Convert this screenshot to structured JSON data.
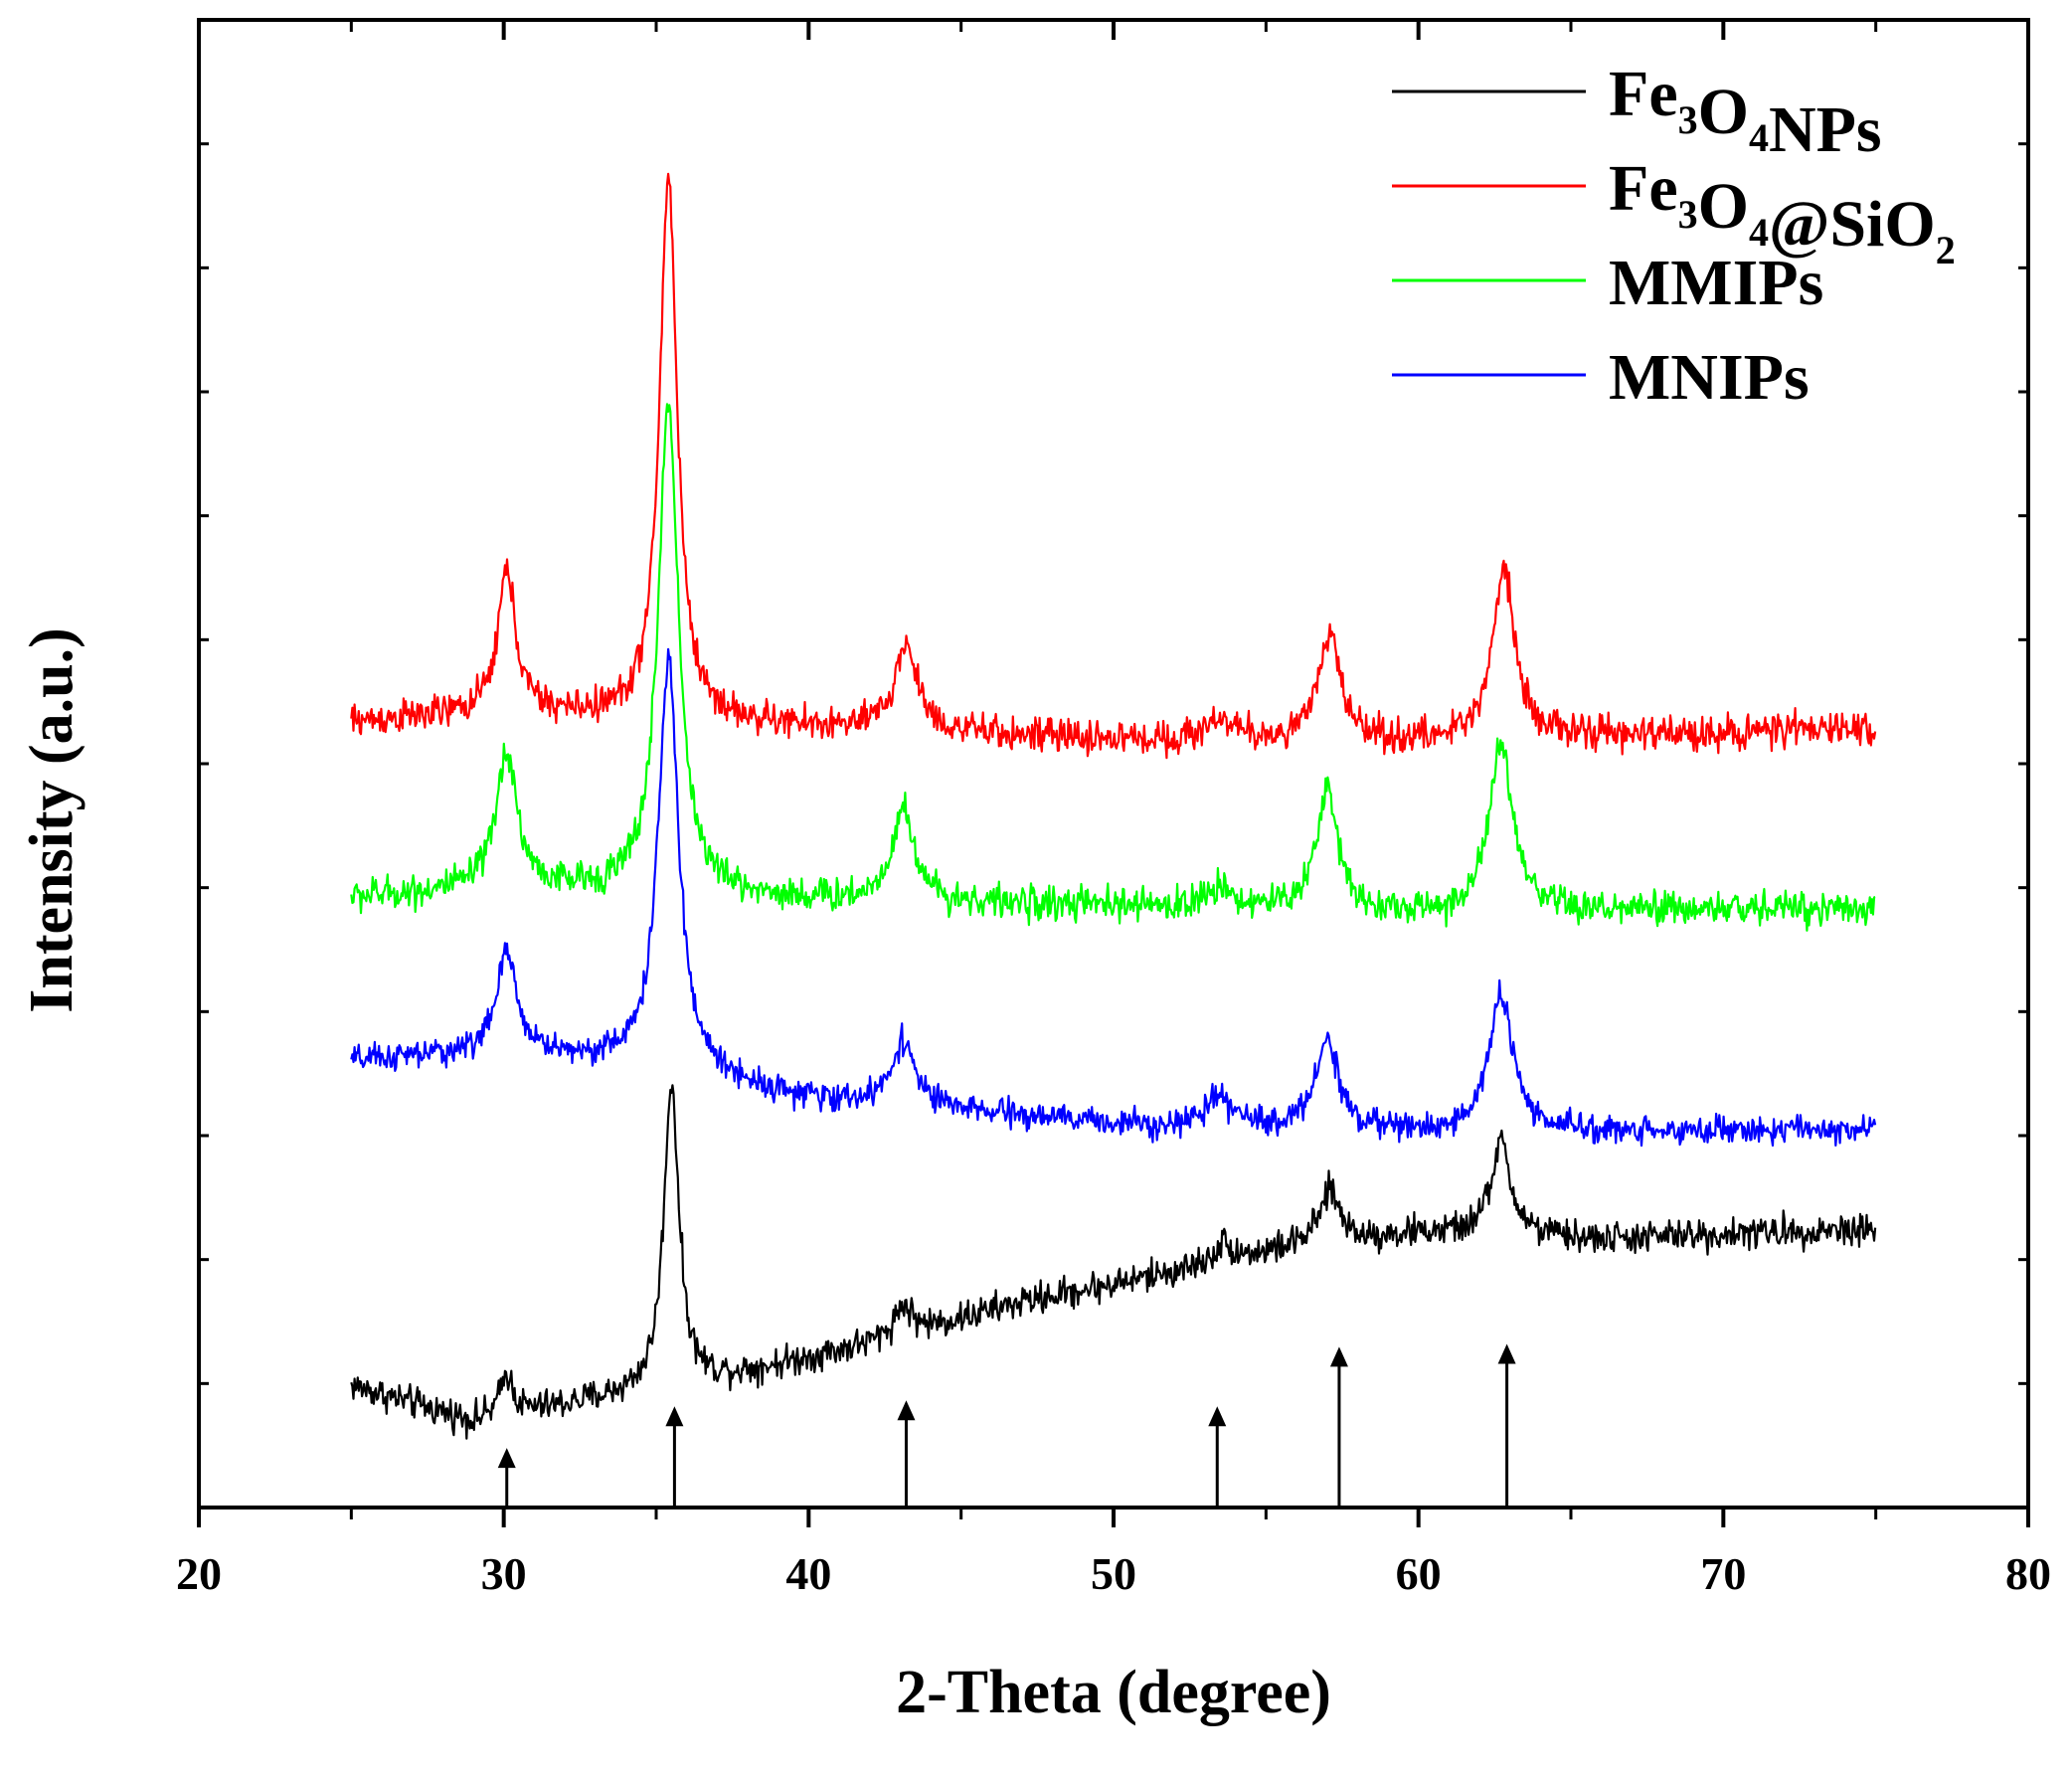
{
  "chart_data": {
    "type": "line",
    "title": "",
    "xlabel": "2-Theta (degree)",
    "ylabel": "Intensity (a.u.)",
    "xlim": [
      20,
      80
    ],
    "ylim": [
      0,
      100
    ],
    "x_ticks": [
      20,
      30,
      40,
      50,
      60,
      70,
      80
    ],
    "x_tick_labels": [
      "20",
      "30",
      "40",
      "50",
      "60",
      "70",
      "80"
    ],
    "y_tick_labels_shown": false,
    "legend_position": "top-right",
    "series": [
      {
        "name": "Fe3O4NPs",
        "legend_parts": [
          {
            "t": "Fe"
          },
          {
            "t": "3",
            "sub": true
          },
          {
            "t": "O"
          },
          {
            "t": "4",
            "sub": true
          },
          {
            "t": "NPs"
          }
        ],
        "color": "#000000",
        "x_range": [
          25,
          75
        ],
        "baseline_points": [
          [
            25,
            8.2
          ],
          [
            29,
            5.8
          ],
          [
            33,
            7.2
          ],
          [
            37,
            8.6
          ],
          [
            42,
            11.0
          ],
          [
            47,
            13.8
          ],
          [
            52,
            15.8
          ],
          [
            56,
            17.5
          ],
          [
            60,
            18.4
          ],
          [
            66,
            18.0
          ],
          [
            75,
            18.8
          ]
        ],
        "noise": 1.6,
        "peaks": [
          {
            "x": 30.1,
            "height": 2.8,
            "width": 0.25
          },
          {
            "x": 35.5,
            "height": 20.5,
            "width": 0.3
          },
          {
            "x": 43.1,
            "height": 2.0,
            "width": 0.35
          },
          {
            "x": 53.6,
            "height": 1.2,
            "width": 0.4
          },
          {
            "x": 57.1,
            "height": 3.5,
            "width": 0.4
          },
          {
            "x": 62.7,
            "height": 6.2,
            "width": 0.4
          }
        ]
      },
      {
        "name": "Fe3O4@SiO2",
        "legend_parts": [
          {
            "t": "Fe"
          },
          {
            "t": "3",
            "sub": true
          },
          {
            "t": "O"
          },
          {
            "t": "4",
            "sub": true
          },
          {
            "t": "@SiO"
          },
          {
            "t": "2",
            "sub": true
          }
        ],
        "color": "#ff0000",
        "x_range": [
          25,
          75
        ],
        "baseline_points": [
          [
            25,
            52.8
          ],
          [
            30,
            53.4
          ],
          [
            40,
            52.4
          ],
          [
            50,
            51.6
          ],
          [
            60,
            51.4
          ],
          [
            75,
            52.4
          ]
        ],
        "noise": 1.7,
        "peaks": [
          {
            "x": 30.1,
            "height": 9.5,
            "width": 0.35
          },
          {
            "x": 35.4,
            "height": 36.5,
            "width": 0.35
          },
          {
            "x": 43.2,
            "height": 5.8,
            "width": 0.45
          },
          {
            "x": 53.5,
            "height": 1.5,
            "width": 0.5
          },
          {
            "x": 57.1,
            "height": 7.0,
            "width": 0.45
          },
          {
            "x": 62.8,
            "height": 11.5,
            "width": 0.45
          }
        ]
      },
      {
        "name": "MMIPs",
        "legend_parts": [
          {
            "t": "MMIPs"
          }
        ],
        "color": "#00ff00",
        "x_range": [
          25,
          75
        ],
        "baseline_points": [
          [
            25,
            41.0
          ],
          [
            30,
            41.6
          ],
          [
            40,
            40.8
          ],
          [
            50,
            40.4
          ],
          [
            60,
            39.8
          ],
          [
            75,
            40.4
          ]
        ],
        "noise": 1.7,
        "peaks": [
          {
            "x": 30.1,
            "height": 9.2,
            "width": 0.4
          },
          {
            "x": 35.4,
            "height": 33.0,
            "width": 0.4
          },
          {
            "x": 43.1,
            "height": 6.2,
            "width": 0.45
          },
          {
            "x": 53.5,
            "height": 1.5,
            "width": 0.5
          },
          {
            "x": 57.0,
            "height": 8.0,
            "width": 0.45
          },
          {
            "x": 62.7,
            "height": 11.5,
            "width": 0.45
          }
        ]
      },
      {
        "name": "MNIPs",
        "legend_parts": [
          {
            "t": "MNIPs"
          }
        ],
        "color": "#0000ff",
        "x_range": [
          25,
          75
        ],
        "baseline_points": [
          [
            25,
            30.0
          ],
          [
            30,
            30.6
          ],
          [
            35,
            29.6
          ],
          [
            40,
            27.4
          ],
          [
            50,
            25.8
          ],
          [
            60,
            25.2
          ],
          [
            75,
            25.4
          ]
        ],
        "noise": 1.4,
        "peaks": [
          {
            "x": 30.1,
            "height": 6.5,
            "width": 0.4
          },
          {
            "x": 35.4,
            "height": 27.5,
            "width": 0.4
          },
          {
            "x": 43.1,
            "height": 4.5,
            "width": 0.45
          },
          {
            "x": 53.5,
            "height": 1.8,
            "width": 0.5
          },
          {
            "x": 57.0,
            "height": 6.0,
            "width": 0.45
          },
          {
            "x": 62.7,
            "height": 9.5,
            "width": 0.45
          }
        ]
      }
    ],
    "annotations": {
      "reference_arrows": [
        {
          "x": 30.1,
          "tip": 4.0
        },
        {
          "x": 35.6,
          "tip": 6.8
        },
        {
          "x": 43.2,
          "tip": 7.2
        },
        {
          "x": 53.4,
          "tip": 6.8
        },
        {
          "x": 57.4,
          "tip": 10.8
        },
        {
          "x": 62.9,
          "tip": 11.0
        }
      ]
    }
  }
}
